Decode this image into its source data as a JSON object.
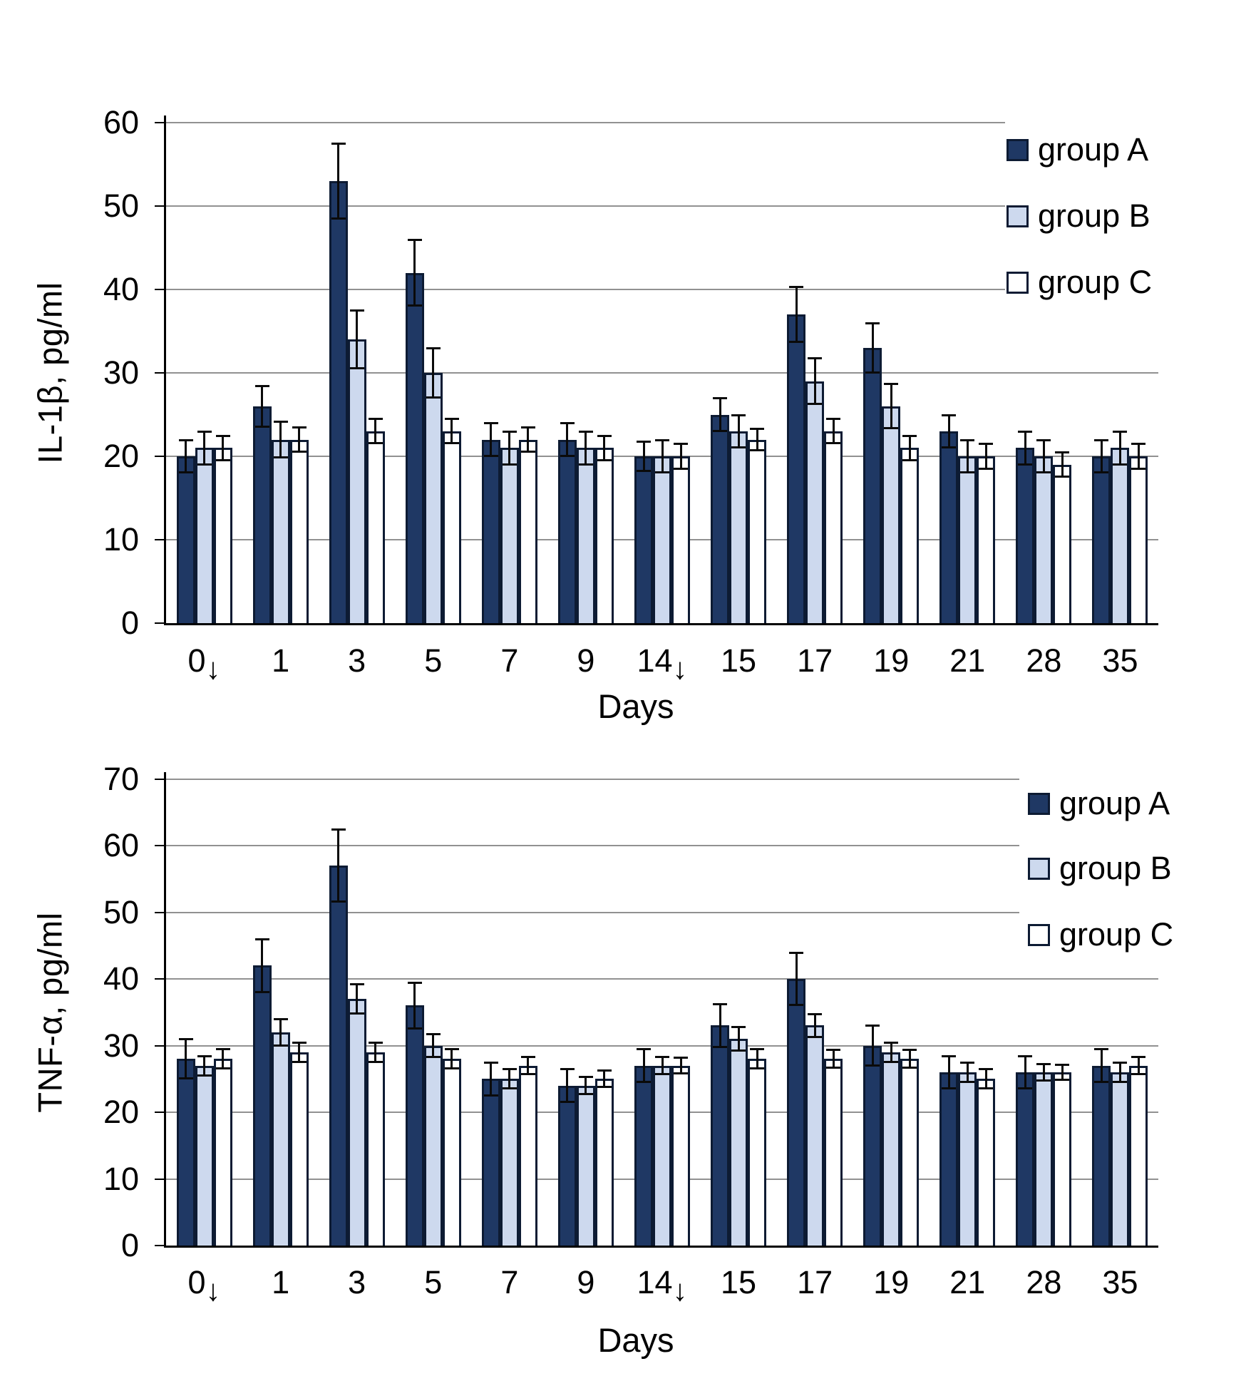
{
  "figure": {
    "background": "#ffffff"
  },
  "colors": {
    "group_a_fill": "#1F3864",
    "group_b_fill": "#CDD9EE",
    "group_c_fill": "#FFFFFF",
    "bar_outline": "#0D1B33",
    "error_bar": "#0a0a0a",
    "gridline": "#919191",
    "axis": "#000000",
    "text": "#000000"
  },
  "chart_data": [
    {
      "type": "bar",
      "title": "",
      "ylabel": "IL-1β, pg/ml",
      "xlabel": "Days",
      "ylim": [
        0,
        60
      ],
      "ytick_step": 10,
      "yticks": [
        0,
        10,
        20,
        30,
        40,
        50,
        60
      ],
      "grid": true,
      "legend_position": "inside-upper-right",
      "legend": [
        "group A",
        "group B",
        "group C"
      ],
      "categories": [
        "0↓",
        "1",
        "3",
        "5",
        "7",
        "9",
        "14↓",
        "15",
        "17",
        "19",
        "21",
        "28",
        "35"
      ],
      "series": [
        {
          "name": "group A",
          "color_key": "group_a_fill",
          "values": [
            20,
            26,
            53,
            42,
            22,
            22,
            20,
            25,
            37,
            33,
            23,
            21,
            20
          ],
          "errors": [
            2,
            2.5,
            4.5,
            4,
            2,
            2,
            1.8,
            2,
            3.3,
            3,
            2,
            2,
            2
          ]
        },
        {
          "name": "group B",
          "color_key": "group_b_fill",
          "values": [
            21,
            22,
            34,
            30,
            21,
            21,
            20,
            23,
            29,
            26,
            20,
            20,
            21
          ],
          "errors": [
            2,
            2.2,
            3.5,
            3,
            2,
            2,
            2,
            2,
            2.8,
            2.7,
            2,
            2,
            2
          ]
        },
        {
          "name": "group C",
          "color_key": "group_c_fill",
          "values": [
            21,
            22,
            23,
            23,
            22,
            21,
            20,
            22,
            23,
            21,
            20,
            19,
            20
          ],
          "errors": [
            1.5,
            1.5,
            1.5,
            1.5,
            1.5,
            1.5,
            1.5,
            1.3,
            1.5,
            1.5,
            1.5,
            1.5,
            1.5
          ]
        }
      ]
    },
    {
      "type": "bar",
      "title": "",
      "ylabel": "TNF-α, pg/ml",
      "xlabel": "Days",
      "ylim": [
        0,
        70
      ],
      "ytick_step": 10,
      "yticks": [
        0,
        10,
        20,
        30,
        40,
        50,
        60,
        70
      ],
      "grid": true,
      "legend_position": "inside-upper-right",
      "legend": [
        "group A",
        "group B",
        "group C"
      ],
      "categories": [
        "0↓",
        "1",
        "3",
        "5",
        "7",
        "9",
        "14↓",
        "15",
        "17",
        "19",
        "21",
        "28",
        "35"
      ],
      "series": [
        {
          "name": "group A",
          "color_key": "group_a_fill",
          "values": [
            28,
            42,
            57,
            36,
            25,
            24,
            27,
            33,
            40,
            30,
            26,
            26,
            27
          ],
          "errors": [
            3,
            4,
            5.5,
            3.5,
            2.5,
            2.5,
            2.5,
            3.3,
            4,
            3,
            2.5,
            2.5,
            2.5
          ]
        },
        {
          "name": "group B",
          "color_key": "group_b_fill",
          "values": [
            27,
            32,
            37,
            30,
            25,
            24,
            27,
            31,
            33,
            29,
            26,
            26,
            26
          ],
          "errors": [
            1.5,
            2,
            2.2,
            1.8,
            1.5,
            1.3,
            1.3,
            1.8,
            1.8,
            1.5,
            1.5,
            1.3,
            1.5
          ]
        },
        {
          "name": "group C",
          "color_key": "group_c_fill",
          "values": [
            28,
            29,
            29,
            28,
            27,
            25,
            27,
            28,
            28,
            28,
            25,
            26,
            27
          ],
          "errors": [
            1.5,
            1.5,
            1.5,
            1.5,
            1.3,
            1.3,
            1.2,
            1.5,
            1.4,
            1.4,
            1.5,
            1.2,
            1.3
          ]
        }
      ]
    }
  ]
}
